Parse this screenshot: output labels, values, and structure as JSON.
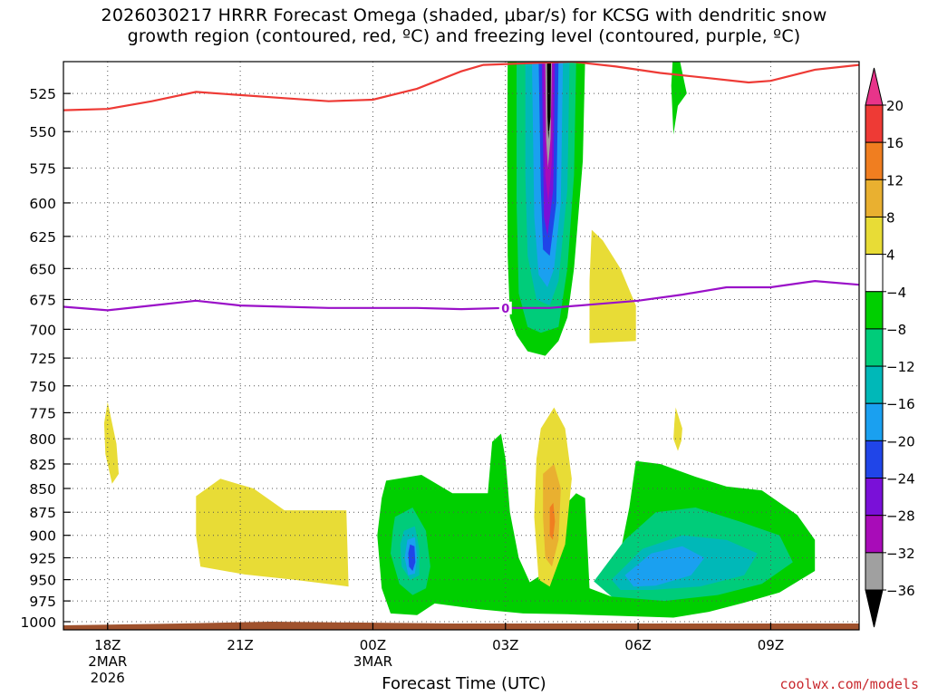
{
  "title": {
    "line1": "2026030217 HRRR Forecast Omega (shaded, μbar/s) for KCSG with dendritic snow",
    "line2": "growth region (contoured, red, ºC) and freezing level (contoured, purple, ºC)"
  },
  "xlabel": "Forecast Time (UTC)",
  "credit": "coolwx.com/models",
  "chart_data": {
    "type": "heatmap",
    "title": "2026030217 HRRR Forecast Omega (shaded, μbar/s) for KCSG with dendritic snow growth region (contoured, red, ºC) and freezing level (contoured, purple, ºC)",
    "xlabel": "Forecast Time (UTC)",
    "ylabel": "",
    "x_axis": {
      "unit": "hours from 17Z 2 Mar 2026",
      "range": [
        0,
        18
      ],
      "ticks": [
        {
          "hour": 1,
          "label": "18Z",
          "sub1": "2MAR",
          "sub2": "2026"
        },
        {
          "hour": 4,
          "label": "21Z",
          "sub1": "",
          "sub2": ""
        },
        {
          "hour": 7,
          "label": "00Z",
          "sub1": "3MAR",
          "sub2": ""
        },
        {
          "hour": 10,
          "label": "03Z",
          "sub1": "",
          "sub2": ""
        },
        {
          "hour": 13,
          "label": "06Z",
          "sub1": "",
          "sub2": ""
        },
        {
          "hour": 16,
          "label": "09Z",
          "sub1": "",
          "sub2": ""
        }
      ]
    },
    "y_axis": {
      "unit": "hPa",
      "range": [
        1010,
        505
      ],
      "scale": "log",
      "ticks": [
        525,
        550,
        575,
        600,
        625,
        650,
        675,
        700,
        725,
        750,
        775,
        800,
        825,
        850,
        875,
        900,
        925,
        950,
        975,
        1000
      ]
    },
    "grid": true,
    "colorbar": {
      "levels": [
        20,
        16,
        12,
        8,
        4,
        -4,
        -8,
        -12,
        -16,
        -20,
        -24,
        -28,
        -32,
        -36
      ],
      "colors": [
        "#e8348a",
        "#ee3a35",
        "#f07e20",
        "#e9b030",
        "#e8dc36",
        "#ffffff",
        "#00cf00",
        "#00cc7a",
        "#00b8b8",
        "#1aa0f0",
        "#2045e8",
        "#7a10d8",
        "#a80cb8",
        "#a0a0a0",
        "#000000"
      ]
    },
    "omega_regions": [
      {
        "value": -6,
        "points": [
          [
            7.3,
            842
          ],
          [
            8.1,
            836
          ],
          [
            8.8,
            855
          ],
          [
            9.6,
            855
          ],
          [
            9.7,
            803
          ],
          [
            9.9,
            795
          ],
          [
            10.0,
            820
          ],
          [
            10.1,
            875
          ],
          [
            10.3,
            925
          ],
          [
            10.55,
            953
          ],
          [
            10.8,
            945
          ],
          [
            11.1,
            880
          ],
          [
            11.6,
            855
          ],
          [
            11.8,
            860
          ],
          [
            11.9,
            960
          ],
          [
            12.4,
            970
          ],
          [
            12.8,
            870
          ],
          [
            12.95,
            822
          ],
          [
            13.5,
            825
          ],
          [
            14.3,
            838
          ],
          [
            15.0,
            848
          ],
          [
            15.8,
            852
          ],
          [
            16.6,
            878
          ],
          [
            17.0,
            905
          ],
          [
            17.0,
            940
          ],
          [
            16.2,
            965
          ],
          [
            15.4,
            977
          ],
          [
            14.6,
            988
          ],
          [
            13.8,
            995
          ],
          [
            12.6,
            993
          ],
          [
            11.4,
            991
          ],
          [
            10.4,
            990
          ],
          [
            9.4,
            985
          ],
          [
            8.4,
            978
          ],
          [
            8.0,
            992
          ],
          [
            7.4,
            990
          ],
          [
            7.2,
            960
          ],
          [
            7.1,
            900
          ],
          [
            7.2,
            860
          ]
        ]
      },
      {
        "value": -6,
        "points": [
          [
            10.05,
            505
          ],
          [
            11.8,
            505
          ],
          [
            11.75,
            570
          ],
          [
            11.55,
            650
          ],
          [
            11.4,
            690
          ],
          [
            11.2,
            710
          ],
          [
            10.9,
            723
          ],
          [
            10.5,
            719
          ],
          [
            10.25,
            705
          ],
          [
            10.1,
            690
          ],
          [
            10.05,
            640
          ],
          [
            10.04,
            560
          ]
        ]
      },
      {
        "value": -6,
        "points": [
          [
            13.78,
            505
          ],
          [
            13.95,
            505
          ],
          [
            14.1,
            525
          ],
          [
            13.9,
            533
          ],
          [
            13.8,
            552
          ],
          [
            13.75,
            520
          ]
        ]
      },
      {
        "value": -10,
        "points": [
          [
            7.5,
            880
          ],
          [
            7.9,
            870
          ],
          [
            8.2,
            895
          ],
          [
            8.3,
            935
          ],
          [
            8.2,
            960
          ],
          [
            7.9,
            968
          ],
          [
            7.6,
            955
          ],
          [
            7.4,
            920
          ],
          [
            7.45,
            895
          ]
        ]
      },
      {
        "value": -10,
        "points": [
          [
            10.25,
            505
          ],
          [
            11.6,
            505
          ],
          [
            11.55,
            580
          ],
          [
            11.4,
            650
          ],
          [
            11.2,
            698
          ],
          [
            10.8,
            703
          ],
          [
            10.5,
            698
          ],
          [
            10.3,
            670
          ],
          [
            10.25,
            600
          ]
        ]
      },
      {
        "value": -10,
        "points": [
          [
            12.0,
            952
          ],
          [
            12.7,
            905
          ],
          [
            13.4,
            875
          ],
          [
            14.3,
            870
          ],
          [
            15.3,
            885
          ],
          [
            16.2,
            900
          ],
          [
            16.5,
            930
          ],
          [
            15.8,
            955
          ],
          [
            14.8,
            968
          ],
          [
            13.6,
            975
          ],
          [
            12.4,
            970
          ]
        ]
      },
      {
        "value": -14,
        "points": [
          [
            7.7,
            895
          ],
          [
            7.95,
            890
          ],
          [
            8.05,
            915
          ],
          [
            8.05,
            945
          ],
          [
            7.85,
            950
          ],
          [
            7.65,
            935
          ],
          [
            7.62,
            910
          ]
        ]
      },
      {
        "value": -14,
        "points": [
          [
            10.45,
            505
          ],
          [
            11.45,
            505
          ],
          [
            11.4,
            590
          ],
          [
            11.2,
            660
          ],
          [
            11.0,
            680
          ],
          [
            10.7,
            675
          ],
          [
            10.5,
            640
          ],
          [
            10.45,
            580
          ]
        ]
      },
      {
        "value": -14,
        "points": [
          [
            12.4,
            950
          ],
          [
            13.1,
            915
          ],
          [
            14.0,
            900
          ],
          [
            15.0,
            905
          ],
          [
            15.7,
            920
          ],
          [
            15.4,
            945
          ],
          [
            14.4,
            958
          ],
          [
            13.3,
            962
          ],
          [
            12.6,
            962
          ]
        ]
      },
      {
        "value": -18,
        "points": [
          [
            7.78,
            905
          ],
          [
            7.95,
            902
          ],
          [
            8.0,
            925
          ],
          [
            7.95,
            943
          ],
          [
            7.8,
            945
          ],
          [
            7.72,
            925
          ]
        ]
      },
      {
        "value": -18,
        "points": [
          [
            10.6,
            505
          ],
          [
            11.3,
            505
          ],
          [
            11.25,
            600
          ],
          [
            11.1,
            650
          ],
          [
            10.95,
            665
          ],
          [
            10.75,
            655
          ],
          [
            10.65,
            610
          ]
        ]
      },
      {
        "value": -18,
        "points": [
          [
            12.7,
            945
          ],
          [
            13.3,
            920
          ],
          [
            14.0,
            912
          ],
          [
            14.5,
            925
          ],
          [
            14.2,
            945
          ],
          [
            13.4,
            957
          ],
          [
            12.9,
            958
          ]
        ]
      },
      {
        "value": -22,
        "points": [
          [
            7.84,
            910
          ],
          [
            7.94,
            912
          ],
          [
            7.96,
            930
          ],
          [
            7.9,
            940
          ],
          [
            7.82,
            935
          ],
          [
            7.8,
            920
          ]
        ]
      },
      {
        "value": -22,
        "points": [
          [
            10.75,
            505
          ],
          [
            11.2,
            505
          ],
          [
            11.15,
            600
          ],
          [
            11.0,
            640
          ],
          [
            10.85,
            635
          ],
          [
            10.8,
            590
          ]
        ]
      },
      {
        "value": -26,
        "points": [
          [
            10.82,
            505
          ],
          [
            11.12,
            505
          ],
          [
            11.08,
            590
          ],
          [
            10.95,
            625
          ],
          [
            10.87,
            610
          ]
        ]
      },
      {
        "value": -30,
        "points": [
          [
            10.86,
            505
          ],
          [
            11.08,
            505
          ],
          [
            11.05,
            570
          ],
          [
            10.97,
            600
          ],
          [
            10.9,
            580
          ]
        ]
      },
      {
        "value": -34,
        "points": [
          [
            10.9,
            505
          ],
          [
            11.05,
            505
          ],
          [
            11.02,
            555
          ],
          [
            10.96,
            575
          ],
          [
            10.92,
            555
          ]
        ]
      },
      {
        "value": -38,
        "points": [
          [
            10.94,
            505
          ],
          [
            11.03,
            505
          ],
          [
            11.02,
            540
          ],
          [
            10.97,
            555
          ],
          [
            10.95,
            540
          ]
        ]
      },
      {
        "value": 6,
        "points": [
          [
            1.0,
            765
          ],
          [
            1.2,
            805
          ],
          [
            1.25,
            835
          ],
          [
            1.1,
            845
          ],
          [
            0.95,
            815
          ],
          [
            0.92,
            785
          ]
        ]
      },
      {
        "value": 6,
        "points": [
          [
            3.0,
            858
          ],
          [
            3.55,
            840
          ],
          [
            4.3,
            850
          ],
          [
            5.0,
            873
          ],
          [
            6.4,
            873
          ],
          [
            6.45,
            958
          ],
          [
            5.2,
            950
          ],
          [
            4.1,
            944
          ],
          [
            3.1,
            935
          ],
          [
            3.0,
            900
          ]
        ]
      },
      {
        "value": 6,
        "points": [
          [
            10.8,
            790
          ],
          [
            11.1,
            770
          ],
          [
            11.35,
            790
          ],
          [
            11.5,
            840
          ],
          [
            11.35,
            910
          ],
          [
            11.0,
            958
          ],
          [
            10.75,
            950
          ],
          [
            10.65,
            880
          ],
          [
            10.7,
            820
          ]
        ]
      },
      {
        "value": 6,
        "points": [
          [
            11.95,
            620
          ],
          [
            12.2,
            628
          ],
          [
            12.6,
            650
          ],
          [
            12.95,
            680
          ],
          [
            12.95,
            710
          ],
          [
            11.9,
            712
          ],
          [
            11.9,
            660
          ]
        ]
      },
      {
        "value": 6,
        "points": [
          [
            13.85,
            770
          ],
          [
            14.0,
            790
          ],
          [
            13.98,
            802
          ],
          [
            13.9,
            812
          ],
          [
            13.8,
            800
          ],
          [
            13.82,
            785
          ]
        ]
      },
      {
        "value": 10,
        "points": [
          [
            10.85,
            835
          ],
          [
            11.1,
            825
          ],
          [
            11.25,
            850
          ],
          [
            11.2,
            905
          ],
          [
            11.05,
            935
          ],
          [
            10.9,
            925
          ],
          [
            10.85,
            880
          ]
        ]
      },
      {
        "value": 14,
        "points": [
          [
            11.0,
            870
          ],
          [
            11.08,
            865
          ],
          [
            11.12,
            885
          ],
          [
            11.07,
            905
          ],
          [
            11.0,
            900
          ]
        ]
      }
    ],
    "dgz_line": {
      "name": "dendritic snow growth region",
      "color": "#ee3a35",
      "points": [
        [
          -0.2,
          536
        ],
        [
          1.0,
          535
        ],
        [
          2.0,
          530
        ],
        [
          3.0,
          524
        ],
        [
          4.0,
          526
        ],
        [
          5.0,
          528
        ],
        [
          6.0,
          530
        ],
        [
          7.0,
          529
        ],
        [
          8.0,
          522
        ],
        [
          9.0,
          511
        ],
        [
          9.5,
          507
        ],
        [
          10.5,
          506
        ],
        [
          11.5,
          505
        ],
        [
          12.5,
          508
        ],
        [
          13.5,
          512
        ],
        [
          14.5,
          515
        ],
        [
          15.5,
          518
        ],
        [
          16.0,
          517
        ],
        [
          17.0,
          510
        ],
        [
          18.0,
          507
        ]
      ]
    },
    "freezing_line": {
      "name": "freezing level",
      "color": "#9a10c8",
      "label": "0",
      "points": [
        [
          0,
          681
        ],
        [
          1.0,
          684
        ],
        [
          2.0,
          680
        ],
        [
          3.0,
          676
        ],
        [
          4.0,
          680
        ],
        [
          5.0,
          681
        ],
        [
          6.0,
          682
        ],
        [
          7.0,
          682
        ],
        [
          8.0,
          682
        ],
        [
          9.0,
          683
        ],
        [
          10.0,
          682
        ],
        [
          11.0,
          682
        ],
        [
          12.0,
          679
        ],
        [
          13.0,
          676
        ],
        [
          14.0,
          671
        ],
        [
          15.0,
          665
        ],
        [
          16.0,
          665
        ],
        [
          17.0,
          660
        ],
        [
          18.0,
          663
        ]
      ]
    }
  }
}
